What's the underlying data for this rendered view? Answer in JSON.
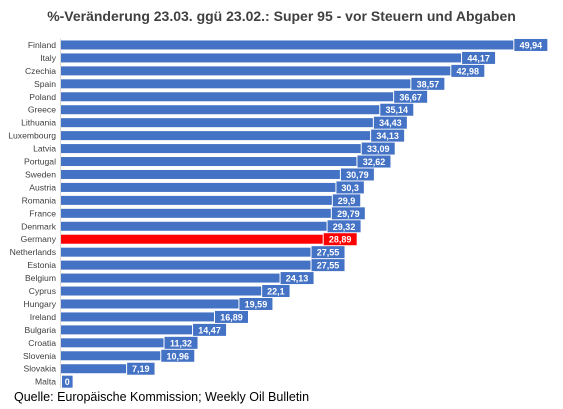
{
  "chart_data": {
    "type": "bar",
    "orientation": "horizontal",
    "title": "%-Veränderung 23.03. ggü 23.02.: Super 95 - vor Steuern und Abgaben",
    "categories": [
      "Finland",
      "Italy",
      "Czechia",
      "Spain",
      "Poland",
      "Greece",
      "Lithuania",
      "Luxembourg",
      "Latvia",
      "Portugal",
      "Sweden",
      "Austria",
      "Romania",
      "France",
      "Denmark",
      "Germany",
      "Netherlands",
      "Estonia",
      "Belgium",
      "Cyprus",
      "Hungary",
      "Ireland",
      "Bulgaria",
      "Croatia",
      "Slovenia",
      "Slovakia",
      "Malta"
    ],
    "values": [
      49.94,
      44.17,
      42.98,
      38.57,
      36.67,
      35.14,
      34.43,
      34.13,
      33.09,
      32.62,
      30.79,
      30.3,
      29.9,
      29.79,
      29.32,
      28.89,
      27.55,
      27.55,
      24.13,
      22.1,
      19.59,
      16.89,
      14.47,
      11.32,
      10.96,
      7.19,
      0
    ],
    "value_labels": [
      "49,94",
      "44,17",
      "42,98",
      "38,57",
      "36,67",
      "35,14",
      "34,43",
      "34,13",
      "33,09",
      "32,62",
      "30,79",
      "30,3",
      "29,9",
      "29,79",
      "29,32",
      "28,89",
      "27,55",
      "27,55",
      "24,13",
      "22,1",
      "19,59",
      "16,89",
      "14,47",
      "11,32",
      "10,96",
      "7,19",
      "0"
    ],
    "highlight_category": "Germany",
    "colors": {
      "bar": "#4472C4",
      "highlight": "#FF0000",
      "label_text": "#FFFFFF",
      "axis": "#D9D9D9",
      "category_text": "#404040"
    },
    "xlim": [
      0,
      52
    ]
  },
  "source": "Quelle: Europäische Kommission; Weekly Oil Bulletin"
}
